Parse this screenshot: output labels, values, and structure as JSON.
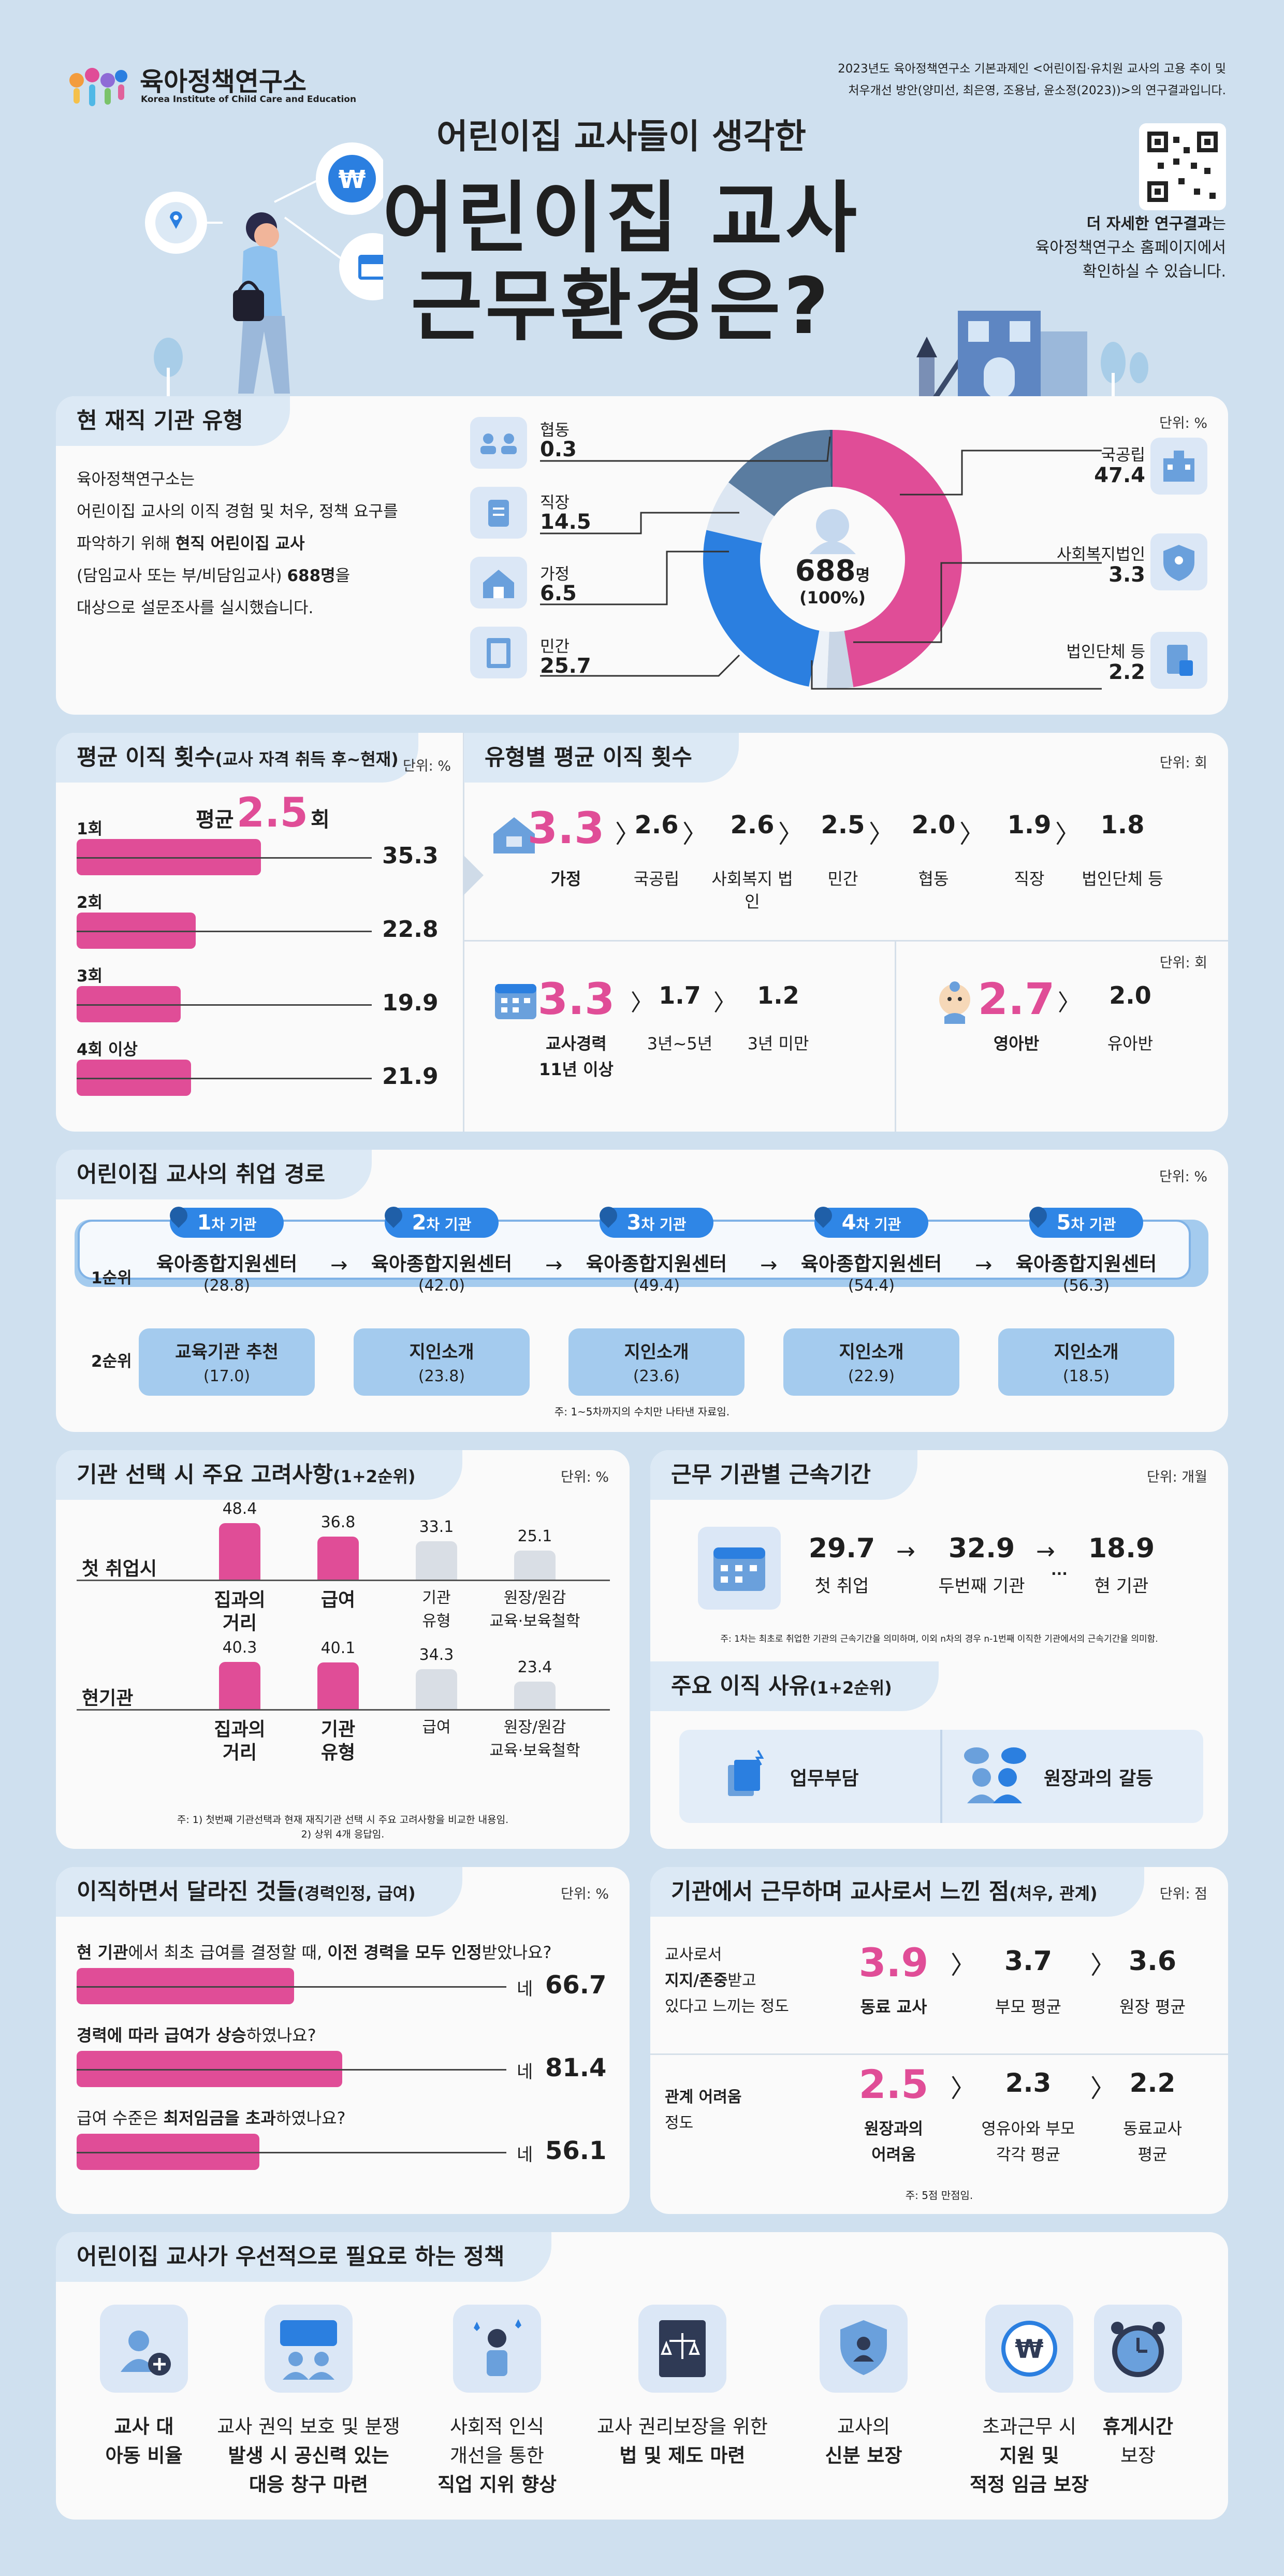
{
  "header": {
    "logo_name": "육아정책연구소",
    "logo_sub": "Korea Institute of Child Care and Education",
    "source_line1": "2023년도 육아정책연구소 기본과제인 <어린이집·유치원 교사의 고용 추이 및",
    "source_line2": "처우개선 방안(양미선, 최은영, 조용남, 윤소정(2023))>의 연구결과입니다.",
    "subtitle": "어린이집 교사들이 생각한",
    "title_line1": "어린이집 교사",
    "title_line2": "근무환경은?",
    "more_bold": "더 자세한 연구결과",
    "more_rest": "는",
    "more_line2": "육아정책연구소 홈페이지에서",
    "more_line3": "확인하실 수 있습니다."
  },
  "colors": {
    "accent": "#e04d97",
    "blue": "#2b7fe0",
    "navy": "#5a7ca0",
    "background": "#cfe0ef"
  },
  "institution": {
    "heading": "현 재직 기관 유형",
    "unit": "단위: %",
    "desc_l1": "육아정책연구소는",
    "desc_l2": "어린이집 교사의 이직 경험 및 처우, 정책 요구를",
    "desc_l3a": "파악하기 위해 ",
    "desc_l3b": "현직 어린이집 교사",
    "desc_l4a": "(담임교사 또는 부/비담임교사) ",
    "desc_l4b": "688명",
    "desc_l4c": "을",
    "desc_l5": "대상으로 설문조사를 실시했습니다.",
    "center_total": "688",
    "center_unit": "명",
    "center_pct": "(100%)",
    "items": [
      {
        "name": "협동",
        "value": "0.3"
      },
      {
        "name": "직장",
        "value": "14.5"
      },
      {
        "name": "가정",
        "value": "6.5"
      },
      {
        "name": "민간",
        "value": "25.7"
      },
      {
        "name": "국공립",
        "value": "47.4"
      },
      {
        "name": "사회복지법인",
        "value": "3.3"
      },
      {
        "name": "법인단체 등",
        "value": "2.2"
      }
    ]
  },
  "turnover": {
    "heading": "평균 이직 횟수",
    "heading_sub": "(교사 자격 취득 후~현재)",
    "unit": "단위: %",
    "avg_label": "평균",
    "avg_value": "2.5",
    "avg_unit": "회",
    "rows": [
      {
        "label": "1회",
        "value": "35.3",
        "pct": 35.3
      },
      {
        "label": "2회",
        "value": "22.8",
        "pct": 22.8
      },
      {
        "label": "3회",
        "value": "19.9",
        "pct": 19.9
      },
      {
        "label": "4회 이상",
        "value": "21.9",
        "pct": 21.9
      }
    ]
  },
  "by_type": {
    "heading": "유형별 평균 이직 횟수",
    "unit": "단위: 회",
    "unit2": "단위: 회",
    "types": [
      {
        "value": "3.3",
        "label": "가정"
      },
      {
        "value": "2.6",
        "label": "국공립"
      },
      {
        "value": "2.6",
        "label": "사회복지 법인"
      },
      {
        "value": "2.5",
        "label": "민간"
      },
      {
        "value": "2.0",
        "label": "협동"
      },
      {
        "value": "1.9",
        "label": "직장"
      },
      {
        "value": "1.8",
        "label": "법인단체 등"
      }
    ],
    "career": [
      {
        "value": "3.3",
        "label_l1": "교사경력",
        "label_l2": "11년 이상"
      },
      {
        "value": "1.7",
        "label_l1": "3년~5년",
        "label_l2": ""
      },
      {
        "value": "1.2",
        "label_l1": "3년 미만",
        "label_l2": ""
      }
    ],
    "class": [
      {
        "value": "2.7",
        "label": "영아반"
      },
      {
        "value": "2.0",
        "label": "유아반"
      }
    ]
  },
  "path": {
    "heading": "어린이집 교사의 취업 경로",
    "unit": "단위: %",
    "rank1": "1순위",
    "rank2": "2순위",
    "note": "주: 1~5차까지의 수치만 나타낸 자료임.",
    "steps": [
      {
        "tag": "1",
        "tag_rest": "차 기관",
        "first": "육아종합지원센터",
        "first_val": "(28.8)",
        "second": "교육기관 추천",
        "second_val": "(17.0)"
      },
      {
        "tag": "2",
        "tag_rest": "차 기관",
        "first": "육아종합지원센터",
        "first_val": "(42.0)",
        "second": "지인소개",
        "second_val": "(23.8)"
      },
      {
        "tag": "3",
        "tag_rest": "차 기관",
        "first": "육아종합지원센터",
        "first_val": "(49.4)",
        "second": "지인소개",
        "second_val": "(23.6)"
      },
      {
        "tag": "4",
        "tag_rest": "차 기관",
        "first": "육아종합지원센터",
        "first_val": "(54.4)",
        "second": "지인소개",
        "second_val": "(22.9)"
      },
      {
        "tag": "5",
        "tag_rest": "차 기관",
        "first": "육아종합지원센터",
        "first_val": "(56.3)",
        "second": "지인소개",
        "second_val": "(18.5)"
      }
    ]
  },
  "consider": {
    "heading": "기관 선택 시 주요 고려사항",
    "heading_sub": "(1+2순위)",
    "unit": "단위: %",
    "note1": "주: 1) 첫번째 기관선택과 현재 재직기관 선택 시 주요 고려사항을 비교한 내용임.",
    "note2": "2) 상위 4개 응답임.",
    "groups": [
      {
        "label": "첫 취업시",
        "bars": [
          {
            "value": "48.4",
            "v": 48.4,
            "l1": "집과의",
            "l2": "거리",
            "hl": true
          },
          {
            "value": "36.8",
            "v": 36.8,
            "l1": "급여",
            "l2": "",
            "hl": true
          },
          {
            "value": "33.1",
            "v": 33.1,
            "l1": "기관",
            "l2": "유형",
            "hl": false
          },
          {
            "value": "25.1",
            "v": 25.1,
            "l1": "원장/원감",
            "l2": "교육·보육철학",
            "hl": false
          }
        ]
      },
      {
        "label": "현기관",
        "bars": [
          {
            "value": "40.3",
            "v": 40.3,
            "l1": "집과의",
            "l2": "거리",
            "hl": true
          },
          {
            "value": "40.1",
            "v": 40.1,
            "l1": "기관",
            "l2": "유형",
            "hl": true
          },
          {
            "value": "34.3",
            "v": 34.3,
            "l1": "급여",
            "l2": "",
            "hl": false
          },
          {
            "value": "23.4",
            "v": 23.4,
            "l1": "원장/원감",
            "l2": "교육·보육철학",
            "hl": false
          }
        ]
      }
    ]
  },
  "tenure": {
    "heading": "근무 기관별 근속기간",
    "unit": "단위: 개월",
    "note": "주: 1차는 최초로 취업한 기관의 근속기간을 의미하며, 이외 n차의 경우 n-1번째 이직한 기관에서의 근속기간을 의미함.",
    "dots": "···",
    "items": [
      {
        "value": "29.7",
        "label": "첫 취업"
      },
      {
        "value": "32.9",
        "label": "두번째 기관"
      },
      {
        "value": "18.9",
        "label": "현 기관"
      }
    ]
  },
  "reasons": {
    "heading": "주요 이직 사유",
    "heading_sub": "(1+2순위)",
    "items": [
      "업무부담",
      "원장과의 갈등"
    ]
  },
  "changes": {
    "heading": "이직하면서 달라진 것들",
    "heading_sub": "(경력인정, 급여)",
    "unit": "단위: %",
    "answer": "네",
    "items": [
      {
        "q_pre": "현 기관",
        "q_mid1": "에서 최초 급여를 결정할 때, ",
        "q_bold": "이전 경력을 모두 인정",
        "q_post": "받았나요?",
        "value": "66.7",
        "pct": 66.7
      },
      {
        "q_pre": "경력에 따라 급여가 상승",
        "q_mid1": "",
        "q_bold": "",
        "q_post": "하였나요?",
        "value": "81.4",
        "pct": 81.4
      },
      {
        "q_pre": "",
        "q_mid1": "급여 수준은 ",
        "q_bold": "최저임금을 초과",
        "q_post": "하였나요?",
        "value": "56.1",
        "pct": 56.1
      }
    ]
  },
  "feelings": {
    "heading": "기관에서 근무하며 교사로서 느낀 점",
    "heading_sub": "(처우, 관계)",
    "unit": "단위: 점",
    "note": "주: 5점 만점임.",
    "support": {
      "l1": "교사로서",
      "l2a": "지지/존중",
      "l2b": "받고",
      "l3": "있다고 느끼는 정도",
      "items": [
        {
          "value": "3.9",
          "label": "동료 교사"
        },
        {
          "value": "3.7",
          "label": "부모 평균"
        },
        {
          "value": "3.6",
          "label": "원장 평균"
        }
      ]
    },
    "difficulty": {
      "l1": "관계 어려움",
      "l2": "정도",
      "items": [
        {
          "value": "2.5",
          "l1": "원장과의",
          "l2": "어려움"
        },
        {
          "value": "2.3",
          "l1": "영유아와 부모",
          "l2": "각각 평균"
        },
        {
          "value": "2.2",
          "l1": "동료교사",
          "l2": "평균"
        }
      ]
    }
  },
  "policy": {
    "heading": "어린이집 교사가 우선적으로 필요로 하는 정책",
    "items": [
      {
        "icon": "teacher-child-ratio-icon",
        "l1": "교사 대",
        "l2": "아동 비율",
        "l3": ""
      },
      {
        "icon": "rights-protection-icon",
        "l1": "교사 권익 보호 및 분쟁",
        "l2": "발생 시 공신력 있는",
        "l3": "대응 창구 마련"
      },
      {
        "icon": "social-status-icon",
        "l1": "사회적 인식",
        "l2": "개선을 통한",
        "l3": "직업 지위 향상"
      },
      {
        "icon": "law-icon",
        "l1": "교사 권리보장을 위한",
        "l2": "법 및 제도 마련",
        "l3": ""
      },
      {
        "icon": "security-shield-icon",
        "l1": "교사의",
        "l2": "신분 보장",
        "l3": ""
      },
      {
        "icon": "overtime-pay-icon",
        "l1": "초과근무 시",
        "l2": "지원 및",
        "l3": "적정 임금 보장"
      },
      {
        "icon": "break-time-clock-icon",
        "l1": "휴게시간",
        "l2": "보장",
        "l3": ""
      }
    ]
  }
}
